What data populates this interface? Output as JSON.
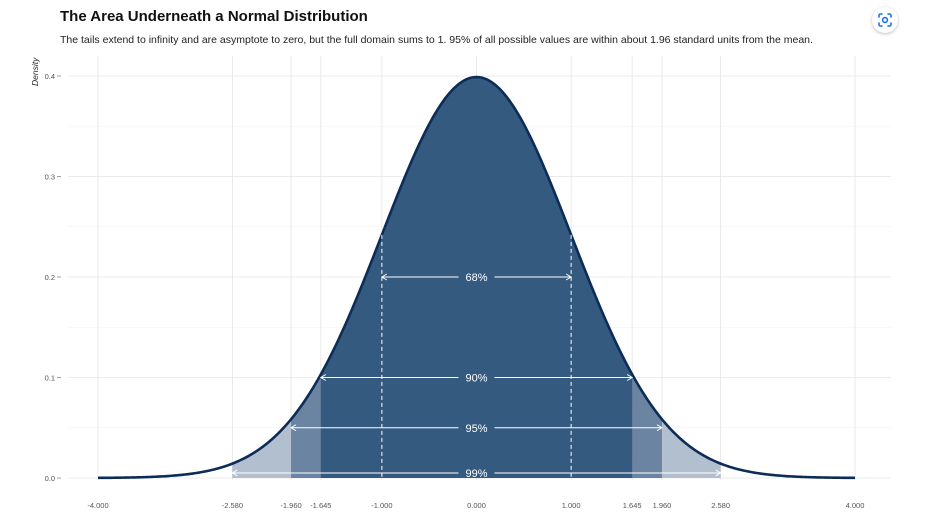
{
  "header": {
    "title": "The Area Underneath a Normal Distribution",
    "subtitle": "The tails extend to infinity and are asymptote to zero, but the full domain sums to 1. 95% of all possible values are within about 1.96 standard units from the mean."
  },
  "toolbar": {
    "lens_icon": "visual-search-icon"
  },
  "colors": {
    "curve": "#0d2c57",
    "band68": "#345a80",
    "band90": "#345a80",
    "band95": "#6b84a1",
    "band99": "#b1bfce",
    "grid_major": "#e4e4e4",
    "grid_minor": "#f1f1f1",
    "annotation": "#ffffff"
  },
  "chart_data": {
    "type": "area",
    "title": "The Area Underneath a Normal Distribution",
    "subtitle": "The tails extend to infinity and are asymptote to zero, but the full domain sums to 1. 95% of all possible values are within about 1.96 standard units from the mean.",
    "xlabel": "",
    "ylabel": "Density",
    "xlim": [
      -4,
      4
    ],
    "ylim": [
      0,
      0.4
    ],
    "distribution": {
      "name": "standard normal",
      "mean": 0,
      "sd": 1
    },
    "x_ticks": [
      -4,
      -2.58,
      -1.96,
      -1.645,
      -1,
      0,
      1,
      1.645,
      1.96,
      2.58,
      4
    ],
    "x_tick_labels": [
      "-4.000",
      "-2.580",
      "-1.960",
      "-1.645",
      "-1.000",
      "0.000",
      "1.000",
      "1.645",
      "1.960",
      "2.580",
      "4.000"
    ],
    "y_ticks": [
      0,
      0.1,
      0.2,
      0.3,
      0.4
    ],
    "y_tick_labels": [
      "0.0",
      "0.1",
      "0.2",
      "0.3",
      "0.4"
    ],
    "intervals": [
      {
        "label": "99%",
        "lo": -2.58,
        "hi": 2.58,
        "y": 0.005
      },
      {
        "label": "95%",
        "lo": -1.96,
        "hi": 1.96,
        "y": 0.05
      },
      {
        "label": "90%",
        "lo": -1.645,
        "hi": 1.645,
        "y": 0.1
      },
      {
        "label": "68%",
        "lo": -1,
        "hi": 1,
        "y": 0.2
      }
    ],
    "grid": true,
    "legend": "none"
  }
}
